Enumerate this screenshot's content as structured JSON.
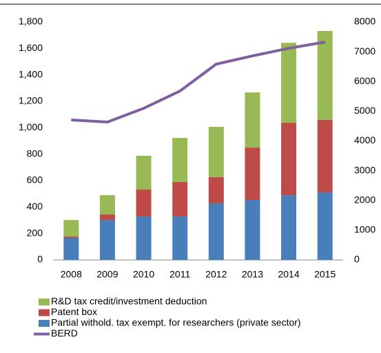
{
  "chart_data": {
    "type": "bar",
    "categories": [
      "2008",
      "2009",
      "2010",
      "2011",
      "2012",
      "2013",
      "2014",
      "2015"
    ],
    "series": [
      {
        "name": "Partial withold. tax exempt. for researchers (private sector)",
        "color": "#4a7ebb",
        "values": [
          167,
          302,
          329,
          329,
          428,
          454,
          490,
          511
        ]
      },
      {
        "name": "Patent box",
        "color": "#be4b48",
        "values": [
          10,
          42,
          203,
          261,
          198,
          396,
          548,
          548
        ]
      },
      {
        "name": "R&D tax credit/investment deduction",
        "color": "#98b954",
        "values": [
          125,
          146,
          256,
          333,
          381,
          418,
          605,
          673
        ]
      },
      {
        "name": "BERD",
        "color": "#7f5fa0",
        "type": "line",
        "axis": "y2",
        "values": [
          4707,
          4637,
          5100,
          5680,
          6585,
          6863,
          7118,
          7327
        ]
      }
    ],
    "ylim": [
      0,
      1800
    ],
    "yticks": [
      0,
      200,
      400,
      600,
      800,
      {
        "value": 1000,
        "label": "1,000"
      },
      {
        "value": 1200,
        "label": "1,200"
      },
      {
        "value": 1400,
        "label": "1,400"
      },
      {
        "value": 1600,
        "label": "1,600"
      },
      {
        "value": 1800,
        "label": "1,800"
      }
    ],
    "y2lim": [
      0,
      8000
    ],
    "y2ticks": [
      0,
      1000,
      2000,
      3000,
      4000,
      5000,
      6000,
      7000,
      8000
    ],
    "stacked": true,
    "grid": false
  }
}
